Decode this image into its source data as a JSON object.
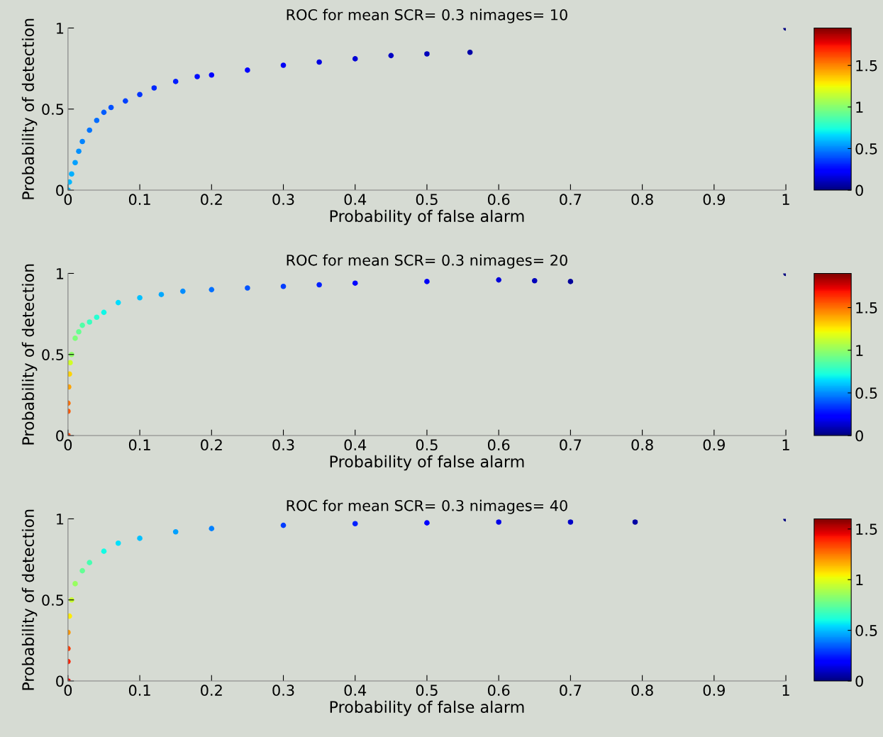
{
  "chart_data": [
    {
      "type": "scatter",
      "title": "ROC for mean SCR= 0.3 nimages= 10",
      "xlabel": "Probability of false alarm",
      "ylabel": "Probability of detection",
      "marker": "circle",
      "grid": false,
      "legend": false,
      "xlim": [
        0,
        1
      ],
      "ylim": [
        0,
        1
      ],
      "xticks": [
        0,
        0.1,
        0.2,
        0.3,
        0.4,
        0.5,
        0.6,
        0.7,
        0.8,
        0.9,
        1
      ],
      "yticks": [
        0,
        0.5,
        1
      ],
      "clim": [
        0,
        1.95
      ],
      "cticks": [
        0,
        0.5,
        1,
        1.5
      ],
      "x": [
        0,
        0.002,
        0.005,
        0.01,
        0.015,
        0.02,
        0.03,
        0.04,
        0.05,
        0.06,
        0.08,
        0.1,
        0.12,
        0.15,
        0.18,
        0.2,
        0.25,
        0.3,
        0.35,
        0.4,
        0.45,
        0.5,
        0.56,
        1
      ],
      "values": [
        0,
        0.05,
        0.1,
        0.17,
        0.24,
        0.3,
        0.37,
        0.43,
        0.48,
        0.51,
        0.55,
        0.59,
        0.63,
        0.67,
        0.7,
        0.71,
        0.74,
        0.77,
        0.79,
        0.81,
        0.83,
        0.84,
        0.85,
        1
      ],
      "cvalues": [
        0.6,
        0.6,
        0.58,
        0.55,
        0.52,
        0.5,
        0.47,
        0.45,
        0.42,
        0.4,
        0.37,
        0.35,
        0.32,
        0.3,
        0.27,
        0.25,
        0.22,
        0.2,
        0.17,
        0.15,
        0.12,
        0.1,
        0.07,
        0
      ]
    },
    {
      "type": "scatter",
      "title": "ROC for mean SCR= 0.3 nimages= 20",
      "xlabel": "Probability of false alarm",
      "ylabel": "Probability of detection",
      "marker": "circle",
      "grid": false,
      "legend": false,
      "xlim": [
        0,
        1
      ],
      "ylim": [
        0,
        1
      ],
      "xticks": [
        0,
        0.1,
        0.2,
        0.3,
        0.4,
        0.5,
        0.6,
        0.7,
        0.8,
        0.9,
        1
      ],
      "yticks": [
        0,
        0.5,
        1
      ],
      "clim": [
        0,
        1.9
      ],
      "cticks": [
        0,
        0.5,
        1,
        1.5
      ],
      "x": [
        0,
        0,
        0,
        0.001,
        0.002,
        0.003,
        0.005,
        0.01,
        0.015,
        0.02,
        0.03,
        0.04,
        0.05,
        0.07,
        0.1,
        0.13,
        0.16,
        0.2,
        0.25,
        0.3,
        0.35,
        0.4,
        0.5,
        0.6,
        0.65,
        0.7,
        1
      ],
      "values": [
        0,
        0.15,
        0.2,
        0.3,
        0.38,
        0.45,
        0.5,
        0.6,
        0.64,
        0.68,
        0.7,
        0.73,
        0.76,
        0.82,
        0.85,
        0.87,
        0.89,
        0.9,
        0.91,
        0.92,
        0.93,
        0.94,
        0.95,
        0.96,
        0.955,
        0.95,
        1
      ],
      "cvalues": [
        1.6,
        1.55,
        1.5,
        1.4,
        1.3,
        1.15,
        1.0,
        0.95,
        0.9,
        0.85,
        0.8,
        0.75,
        0.7,
        0.65,
        0.6,
        0.55,
        0.5,
        0.45,
        0.4,
        0.35,
        0.3,
        0.25,
        0.2,
        0.15,
        0.1,
        0.05,
        0
      ]
    },
    {
      "type": "scatter",
      "title": "ROC for mean SCR= 0.3 nimages= 40",
      "xlabel": "Probability of false alarm",
      "ylabel": "Probability of detection",
      "marker": "circle",
      "grid": false,
      "legend": false,
      "xlim": [
        0,
        1
      ],
      "ylim": [
        0,
        1
      ],
      "xticks": [
        0,
        0.1,
        0.2,
        0.3,
        0.4,
        0.5,
        0.6,
        0.7,
        0.8,
        0.9,
        1
      ],
      "yticks": [
        0,
        0.5,
        1
      ],
      "clim": [
        0,
        1.6
      ],
      "cticks": [
        0,
        0.5,
        1,
        1.5
      ],
      "x": [
        0,
        0,
        0,
        0,
        0.002,
        0.005,
        0.01,
        0.02,
        0.03,
        0.05,
        0.07,
        0.1,
        0.15,
        0.2,
        0.3,
        0.4,
        0.5,
        0.6,
        0.7,
        0.79,
        1
      ],
      "values": [
        0,
        0.12,
        0.2,
        0.3,
        0.4,
        0.5,
        0.6,
        0.68,
        0.73,
        0.8,
        0.85,
        0.88,
        0.92,
        0.94,
        0.96,
        0.97,
        0.975,
        0.98,
        0.98,
        0.98,
        1
      ],
      "cvalues": [
        1.45,
        1.4,
        1.35,
        1.2,
        1.05,
        0.95,
        0.85,
        0.75,
        0.7,
        0.6,
        0.55,
        0.5,
        0.45,
        0.4,
        0.3,
        0.25,
        0.2,
        0.15,
        0.1,
        0.05,
        0
      ]
    }
  ]
}
